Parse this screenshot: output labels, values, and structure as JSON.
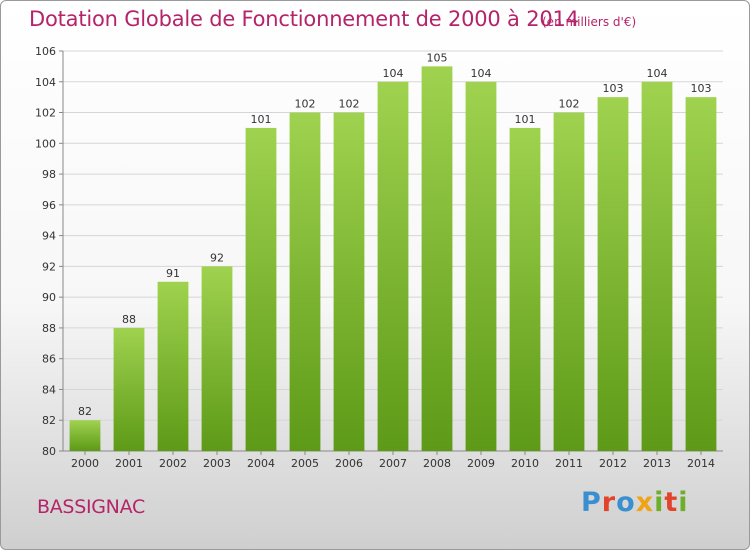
{
  "header": {
    "title": "Dotation Globale de Fonctionnement de 2000 à 2014",
    "unit": "(en milliers d'€)"
  },
  "footer": {
    "commune": "BASSIGNAC",
    "logo_letters": [
      "P",
      "r",
      "o",
      "x",
      "i",
      "t",
      "i"
    ]
  },
  "colors": {
    "title": "#b5246a",
    "bar_top": "#9fd24f",
    "bar_bottom": "#5d9a17",
    "grid": "#d6d6d6"
  },
  "chart_data": {
    "type": "bar",
    "title": "Dotation Globale de Fonctionnement de 2000 à 2014",
    "subtitle": "(en milliers d'€)",
    "xlabel": "",
    "ylabel": "",
    "categories": [
      "2000",
      "2001",
      "2002",
      "2003",
      "2004",
      "2005",
      "2006",
      "2007",
      "2008",
      "2009",
      "2010",
      "2011",
      "2012",
      "2013",
      "2014"
    ],
    "values": [
      82,
      88,
      91,
      92,
      101,
      102,
      102,
      104,
      105,
      104,
      101,
      102,
      103,
      104,
      103
    ],
    "ylim": [
      80,
      106
    ],
    "yticks": [
      80,
      82,
      84,
      86,
      88,
      90,
      92,
      94,
      96,
      98,
      100,
      102,
      104,
      106
    ],
    "grid": true,
    "legend": "none"
  }
}
